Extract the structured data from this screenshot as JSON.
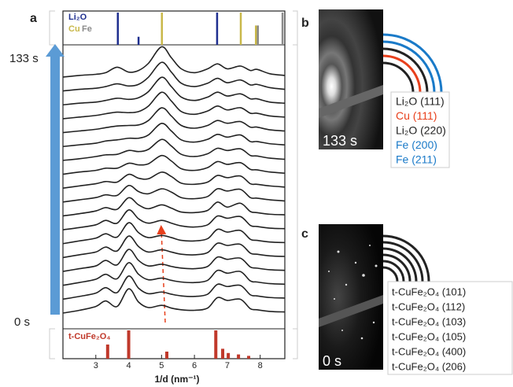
{
  "chart_data": {
    "type": "stacked_spectra",
    "panel_label": "a",
    "xlabel": "1/d (nm⁻¹)",
    "xlim": [
      2,
      8.75
    ],
    "xticks": [
      3,
      4,
      5,
      6,
      7,
      8
    ],
    "time_labels": [
      "133 s",
      "0 s"
    ],
    "line_color": "#222",
    "x": [
      2.0,
      2.5,
      3.0,
      3.3,
      3.65,
      4.0,
      4.3,
      4.6,
      5.0,
      5.3,
      5.6,
      6.0,
      6.4,
      6.7,
      7.0,
      7.4,
      7.7,
      7.9,
      8.3,
      8.75
    ],
    "series": [
      {
        "values": [
          0,
          0.3,
          0.5,
          0.8,
          1.8,
          0.9,
          1.2,
          2.5,
          5.5,
          3.5,
          1.5,
          0.8,
          1.5,
          2.4,
          1.5,
          2.0,
          1.2,
          1.4,
          0.6,
          0.3
        ]
      },
      {
        "values": [
          0,
          0.3,
          0.5,
          0.8,
          1.3,
          0.9,
          1.2,
          2.5,
          5.2,
          3.4,
          1.4,
          0.8,
          1.4,
          2.3,
          1.5,
          2.0,
          1.1,
          1.2,
          0.6,
          0.3
        ]
      },
      {
        "values": [
          0,
          0.3,
          0.5,
          0.8,
          1.2,
          1.0,
          1.3,
          2.4,
          5.0,
          3.3,
          1.4,
          0.8,
          1.4,
          2.3,
          1.6,
          2.0,
          1.1,
          1.1,
          0.5,
          0.3
        ]
      },
      {
        "values": [
          0,
          0.3,
          0.6,
          0.9,
          1.2,
          1.1,
          1.3,
          2.3,
          4.8,
          3.2,
          1.3,
          0.8,
          1.4,
          2.3,
          1.6,
          2.0,
          1.0,
          1.0,
          0.5,
          0.3
        ]
      },
      {
        "values": [
          0,
          0.3,
          0.6,
          0.9,
          1.2,
          1.3,
          1.4,
          2.2,
          4.5,
          3.0,
          1.3,
          0.8,
          1.3,
          2.2,
          1.7,
          2.0,
          1.0,
          1.0,
          0.5,
          0.3
        ]
      },
      {
        "values": [
          0,
          0.3,
          0.6,
          1.0,
          1.2,
          1.5,
          1.5,
          2.1,
          4.2,
          2.8,
          1.2,
          0.8,
          1.3,
          2.2,
          1.7,
          2.1,
          0.9,
          0.9,
          0.5,
          0.3
        ]
      },
      {
        "values": [
          0,
          0.3,
          0.7,
          1.0,
          1.1,
          1.8,
          1.6,
          2.0,
          3.8,
          2.6,
          1.1,
          0.7,
          1.2,
          2.2,
          1.8,
          2.1,
          0.9,
          0.8,
          0.4,
          0.2
        ]
      },
      {
        "values": [
          0,
          0.4,
          0.7,
          1.1,
          1.1,
          2.0,
          1.7,
          1.9,
          3.4,
          2.4,
          1.0,
          0.7,
          1.2,
          2.3,
          1.8,
          2.1,
          0.9,
          0.8,
          0.4,
          0.2
        ]
      },
      {
        "values": [
          0,
          0.4,
          0.8,
          1.2,
          1.1,
          2.5,
          1.8,
          1.7,
          2.9,
          2.1,
          0.9,
          0.7,
          1.1,
          2.3,
          1.9,
          2.2,
          0.8,
          0.7,
          0.4,
          0.2
        ]
      },
      {
        "values": [
          0,
          0.4,
          0.8,
          1.3,
          1.2,
          3.0,
          1.9,
          1.5,
          2.4,
          1.8,
          0.8,
          0.6,
          1.0,
          2.4,
          2.0,
          2.3,
          0.8,
          0.7,
          0.4,
          0.2
        ]
      },
      {
        "values": [
          0,
          0.4,
          0.9,
          1.5,
          1.2,
          3.3,
          2.0,
          1.3,
          2.0,
          1.4,
          0.7,
          0.6,
          1.0,
          2.5,
          1.6,
          2.3,
          0.8,
          0.6,
          0.3,
          0.2
        ]
      },
      {
        "values": [
          0,
          0.4,
          0.9,
          1.7,
          1.2,
          3.6,
          2.0,
          1.2,
          1.7,
          1.2,
          0.7,
          0.5,
          0.9,
          2.5,
          2.1,
          2.4,
          0.8,
          0.6,
          0.3,
          0.2
        ]
      },
      {
        "values": [
          0,
          0.5,
          1.0,
          1.8,
          1.2,
          3.8,
          2.0,
          1.1,
          1.5,
          1.1,
          0.6,
          0.5,
          0.9,
          2.6,
          2.1,
          2.4,
          0.8,
          0.6,
          0.3,
          0.2
        ]
      },
      {
        "values": [
          0,
          0.5,
          1.0,
          1.9,
          1.2,
          3.9,
          2.0,
          1.0,
          1.4,
          1.0,
          0.6,
          0.5,
          0.9,
          2.6,
          2.2,
          2.4,
          0.8,
          0.6,
          0.3,
          0.2
        ]
      },
      {
        "values": [
          0,
          0.5,
          1.0,
          2.0,
          1.2,
          4.0,
          2.0,
          1.0,
          1.3,
          0.9,
          0.6,
          0.5,
          0.9,
          2.6,
          2.2,
          2.4,
          0.8,
          0.6,
          0.3,
          0.2
        ]
      },
      {
        "values": [
          0,
          0.5,
          1.1,
          2.0,
          1.2,
          4.1,
          2.0,
          1.0,
          1.3,
          0.9,
          0.6,
          0.5,
          0.9,
          2.7,
          2.2,
          2.5,
          0.8,
          0.6,
          0.3,
          0.2
        ]
      },
      {
        "values": [
          0,
          0.5,
          1.1,
          2.1,
          1.2,
          4.2,
          2.0,
          1.0,
          1.3,
          0.9,
          0.6,
          0.5,
          0.9,
          2.7,
          2.3,
          2.5,
          0.8,
          0.6,
          0.3,
          0.2
        ]
      },
      {
        "values": [
          0,
          0.5,
          1.2,
          2.2,
          1.2,
          4.4,
          2.0,
          1.0,
          1.4,
          0.9,
          0.6,
          0.5,
          0.9,
          2.8,
          2.3,
          2.5,
          0.8,
          0.6,
          0.3,
          0.2
        ]
      }
    ],
    "references": [
      {
        "name": "Li₂O",
        "color": "#1f2f8f",
        "positions": [
          3.67,
          4.3,
          6.69
        ],
        "intensities": [
          100,
          25,
          100
        ]
      },
      {
        "name": "Cu",
        "color": "#c9b84a",
        "positions": [
          5.01,
          7.41,
          7.87
        ],
        "intensities": [
          100,
          100,
          60
        ]
      },
      {
        "name": "Fe",
        "color": "#8a8a8a",
        "positions": [
          7.93,
          8.68
        ],
        "intensities": [
          60,
          100
        ]
      }
    ],
    "reference_bottom": {
      "name": "t-CuFe₂O₄",
      "color": "#c0392b",
      "positions": [
        3.36,
        4.0,
        5.16,
        6.65,
        6.86,
        7.03,
        7.34,
        7.65
      ],
      "intensities": [
        50,
        100,
        25,
        100,
        35,
        20,
        15,
        10
      ]
    }
  },
  "panel_b": {
    "label": "b",
    "time": "133 s",
    "rings": [
      {
        "text": "Li₂O (111)",
        "color": "#222"
      },
      {
        "text": "Cu (111)",
        "color": "#e8401c"
      },
      {
        "text": "Li₂O (220)",
        "color": "#222"
      },
      {
        "text": "Fe (200)",
        "color": "#1a7ac8"
      },
      {
        "text": "Fe (211)",
        "color": "#1a7ac8"
      }
    ]
  },
  "panel_c": {
    "label": "c",
    "time": "0 s",
    "rings": [
      {
        "text": "t-CuFe₂O₄ (101)",
        "color": "#222"
      },
      {
        "text": "t-CuFe₂O₄ (112)",
        "color": "#222"
      },
      {
        "text": "t-CuFe₂O₄ (103)",
        "color": "#222"
      },
      {
        "text": "t-CuFe₂O₄ (105)",
        "color": "#222"
      },
      {
        "text": "t-CuFe₂O₄ (400)",
        "color": "#222"
      },
      {
        "text": "t-CuFe₂O₄ (206)",
        "color": "#222"
      }
    ]
  }
}
